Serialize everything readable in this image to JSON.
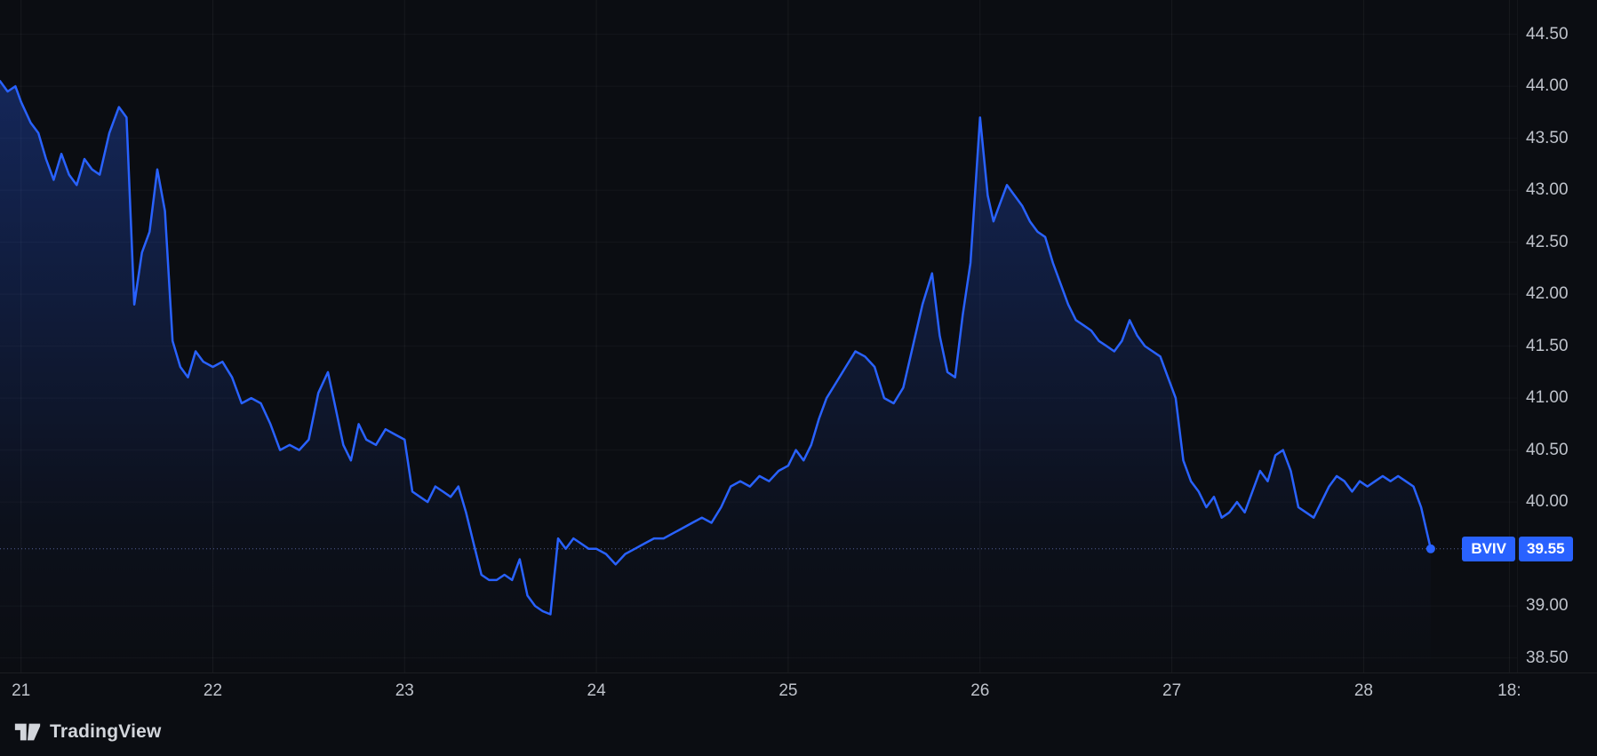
{
  "price_label": {
    "symbol": "BVIV",
    "price": "39.55"
  },
  "footer": {
    "brand": "TradingView"
  },
  "colors": {
    "background": "#0b0d12",
    "line": "#2962ff",
    "badge": "#2962ff",
    "axis_text": "#bfc3cb"
  },
  "chart_data": {
    "type": "line",
    "title": "",
    "xlabel": "",
    "ylabel": "",
    "symbol": "BVIV",
    "last_price": 39.55,
    "grid": true,
    "x_range": [
      20.89,
      28.8
    ],
    "y_range": [
      38.36,
      44.83
    ],
    "x_ticks": [
      {
        "label": "21",
        "x": 21
      },
      {
        "label": "22",
        "x": 22
      },
      {
        "label": "23",
        "x": 23
      },
      {
        "label": "24",
        "x": 24
      },
      {
        "label": "25",
        "x": 25
      },
      {
        "label": "26",
        "x": 26
      },
      {
        "label": "27",
        "x": 27
      },
      {
        "label": "28",
        "x": 28
      },
      {
        "label": "18:",
        "x": 28.76
      }
    ],
    "y_ticks": [
      "44.50",
      "44.00",
      "43.50",
      "43.00",
      "42.50",
      "42.00",
      "41.50",
      "41.00",
      "40.50",
      "40.00",
      "39.00",
      "38.50"
    ],
    "series": [
      {
        "name": "BVIV",
        "x": [
          20.89,
          20.93,
          20.97,
          21.0,
          21.05,
          21.09,
          21.13,
          21.17,
          21.21,
          21.25,
          21.29,
          21.33,
          21.37,
          21.41,
          21.46,
          21.51,
          21.55,
          21.59,
          21.63,
          21.67,
          21.71,
          21.75,
          21.79,
          21.83,
          21.87,
          21.91,
          21.95,
          22.0,
          22.05,
          22.1,
          22.15,
          22.2,
          22.25,
          22.3,
          22.35,
          22.4,
          22.45,
          22.5,
          22.55,
          22.6,
          22.64,
          22.68,
          22.72,
          22.76,
          22.8,
          22.85,
          22.9,
          22.95,
          23.0,
          23.04,
          23.08,
          23.12,
          23.16,
          23.2,
          23.24,
          23.28,
          23.32,
          23.36,
          23.4,
          23.44,
          23.48,
          23.52,
          23.56,
          23.6,
          23.64,
          23.68,
          23.72,
          23.76,
          23.8,
          23.84,
          23.88,
          23.92,
          23.96,
          24.0,
          24.05,
          24.1,
          24.15,
          24.2,
          24.25,
          24.3,
          24.35,
          24.4,
          24.45,
          24.5,
          24.55,
          24.6,
          24.65,
          24.7,
          24.75,
          24.8,
          24.85,
          24.9,
          24.95,
          25.0,
          25.04,
          25.08,
          25.12,
          25.16,
          25.2,
          25.25,
          25.3,
          25.35,
          25.4,
          25.45,
          25.5,
          25.55,
          25.6,
          25.65,
          25.7,
          25.75,
          25.79,
          25.83,
          25.87,
          25.91,
          25.95,
          26.0,
          26.04,
          26.07,
          26.1,
          26.14,
          26.18,
          26.22,
          26.26,
          26.3,
          26.34,
          26.38,
          26.42,
          26.46,
          26.5,
          26.54,
          26.58,
          26.62,
          26.66,
          26.7,
          26.74,
          26.78,
          26.82,
          26.86,
          26.9,
          26.94,
          26.98,
          27.02,
          27.06,
          27.1,
          27.14,
          27.18,
          27.22,
          27.26,
          27.3,
          27.34,
          27.38,
          27.42,
          27.46,
          27.5,
          27.54,
          27.58,
          27.62,
          27.66,
          27.7,
          27.74,
          27.78,
          27.82,
          27.86,
          27.9,
          27.94,
          27.98,
          28.02,
          28.06,
          28.1,
          28.14,
          28.18,
          28.22,
          28.26,
          28.3,
          28.35
        ],
        "y": [
          44.05,
          43.95,
          44.0,
          43.85,
          43.65,
          43.55,
          43.3,
          43.1,
          43.35,
          43.15,
          43.05,
          43.3,
          43.2,
          43.15,
          43.55,
          43.8,
          43.7,
          41.9,
          42.4,
          42.6,
          43.2,
          42.8,
          41.55,
          41.3,
          41.2,
          41.45,
          41.35,
          41.3,
          41.35,
          41.2,
          40.95,
          41.0,
          40.95,
          40.75,
          40.5,
          40.55,
          40.5,
          40.6,
          41.05,
          41.25,
          40.9,
          40.55,
          40.4,
          40.75,
          40.6,
          40.55,
          40.7,
          40.65,
          40.6,
          40.1,
          40.05,
          40.0,
          40.15,
          40.1,
          40.05,
          40.15,
          39.9,
          39.6,
          39.3,
          39.25,
          39.25,
          39.3,
          39.25,
          39.45,
          39.1,
          39.0,
          38.95,
          38.92,
          39.65,
          39.55,
          39.65,
          39.6,
          39.55,
          39.55,
          39.5,
          39.4,
          39.5,
          39.55,
          39.6,
          39.65,
          39.65,
          39.7,
          39.75,
          39.8,
          39.85,
          39.8,
          39.95,
          40.15,
          40.2,
          40.15,
          40.25,
          40.2,
          40.3,
          40.35,
          40.5,
          40.4,
          40.55,
          40.8,
          41.0,
          41.15,
          41.3,
          41.45,
          41.4,
          41.3,
          41.0,
          40.95,
          41.1,
          41.5,
          41.9,
          42.2,
          41.6,
          41.25,
          41.2,
          41.8,
          42.3,
          43.7,
          42.95,
          42.7,
          42.85,
          43.05,
          42.95,
          42.85,
          42.7,
          42.6,
          42.55,
          42.3,
          42.1,
          41.9,
          41.75,
          41.7,
          41.65,
          41.55,
          41.5,
          41.45,
          41.55,
          41.75,
          41.6,
          41.5,
          41.45,
          41.4,
          41.2,
          41.0,
          40.4,
          40.2,
          40.1,
          39.95,
          40.05,
          39.85,
          39.9,
          40.0,
          39.9,
          40.1,
          40.3,
          40.2,
          40.45,
          40.5,
          40.3,
          39.95,
          39.9,
          39.85,
          40.0,
          40.15,
          40.25,
          40.2,
          40.1,
          40.2,
          40.15,
          40.2,
          40.25,
          40.2,
          40.25,
          40.2,
          40.15,
          39.95,
          39.55
        ]
      }
    ],
    "legend": [],
    "annotations": [
      "Current price label BVIV 39.55 with dotted price line and end-of-series dot"
    ]
  }
}
